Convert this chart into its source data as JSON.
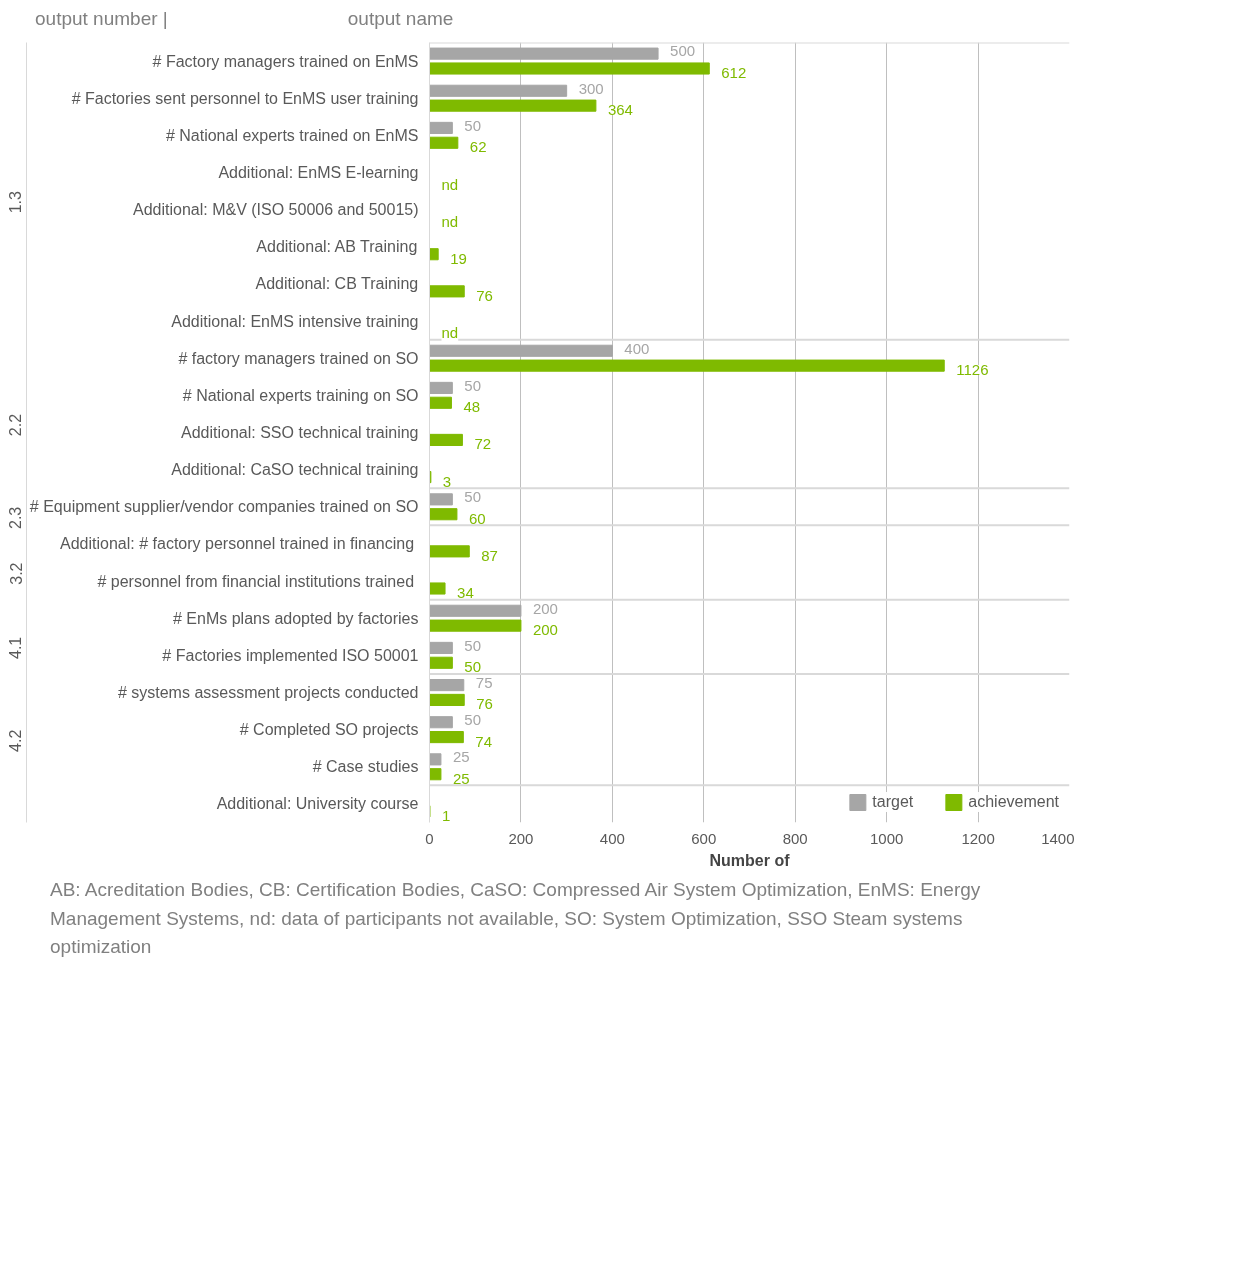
{
  "chart_data": {
    "type": "bar",
    "orientation": "horizontal",
    "xlabel": "Number of",
    "categories": [
      "# Factory managers trained on EnMS",
      "# Factories sent personnel to EnMS user training",
      "# National experts trained on EnMS",
      "Additional: EnMS E-learning",
      "Additional: M&V (ISO 50006 and 50015)",
      "Additional: AB Training",
      "Additional: CB Training",
      "Additional: EnMS intensive training",
      "# factory managers trained on SO",
      "# National experts training on SO",
      "Additional: SSO technical training",
      "Additional: CaSO technical training",
      "# Equipment supplier/vendor companies trained on SO",
      "Additional: #  factory personnel trained in financing",
      "#  personnel from financial institutions trained",
      "# EnMs plans adopted by factories",
      "# Factories implemented ISO 50001",
      "# systems assessment projects conducted",
      "# Completed SO projects",
      "# Case studies",
      "Additional: University course"
    ],
    "series": [
      {
        "name": "target",
        "color": "#a6a6a6",
        "values": [
          500,
          300,
          50,
          null,
          null,
          null,
          null,
          null,
          400,
          50,
          null,
          null,
          50,
          null,
          null,
          200,
          50,
          75,
          50,
          25,
          null
        ],
        "value_labels": [
          "500",
          "300",
          "50",
          null,
          null,
          null,
          null,
          null,
          "400",
          "50",
          null,
          null,
          "50",
          null,
          null,
          "200",
          "50",
          "75",
          "50",
          "25",
          null
        ]
      },
      {
        "name": "achievement",
        "color": "#7fba00",
        "values": [
          612,
          364,
          62,
          null,
          null,
          19,
          76,
          null,
          1126,
          48,
          72,
          3,
          60,
          87,
          34,
          200,
          50,
          76,
          74,
          25,
          1
        ],
        "value_labels": [
          "612",
          "364",
          "62",
          "nd",
          "nd",
          "19",
          "76",
          "nd",
          "1126",
          "48",
          "72",
          "3",
          "60",
          "87",
          "34",
          "200",
          "50",
          "76",
          "74",
          "25",
          "1"
        ]
      }
    ],
    "xlim": [
      0,
      1400
    ],
    "xticks": [
      0,
      200,
      400,
      600,
      800,
      1000,
      1200,
      1400
    ],
    "grid": "x",
    "legend": "bottom right",
    "annotations": [
      "output number |",
      "output name",
      "1.3",
      "2.2",
      "2.3",
      "3.2",
      "4.1",
      "4.2",
      "AB: Acreditation Bodies, CB: Certification Bodies, CaSO: Compressed Air System Optimization, EnMS: Energy Management Systems, nd: data of participants not available,  SO: System Optimization, SSO Steam systems optimization"
    ]
  }
}
